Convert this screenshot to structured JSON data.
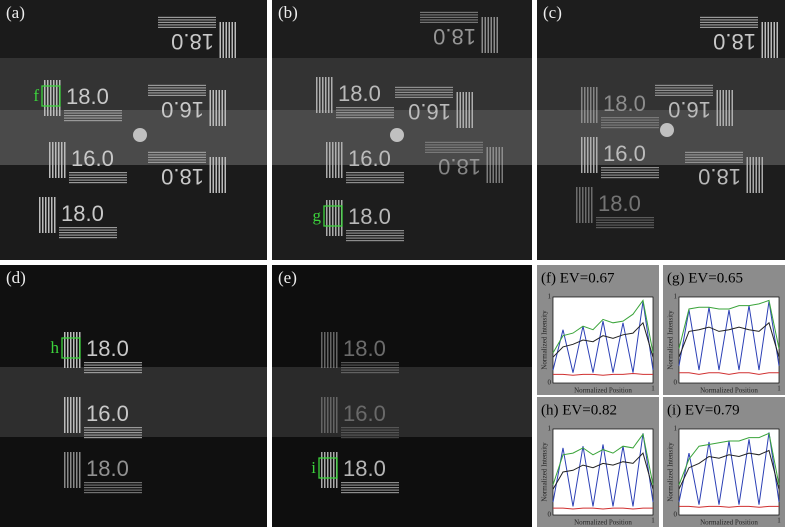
{
  "panels": [
    {
      "label": "(a)",
      "marker": "f",
      "targets": [
        "18.0",
        "18.0",
        "16.0",
        "16.0",
        "18.0",
        "18.0"
      ]
    },
    {
      "label": "(b)",
      "marker": "g",
      "targets": [
        "18.0",
        "18.0",
        "16.0",
        "16.0",
        "18.0",
        "18.0"
      ]
    },
    {
      "label": "(c)",
      "targets": [
        "18.0",
        "18.0",
        "16.0",
        "16.0",
        "18.0",
        "18.0"
      ]
    },
    {
      "label": "(d)",
      "marker": "h",
      "targets": [
        "18.0",
        "16.0",
        "18.0"
      ]
    },
    {
      "label": "(e)",
      "marker": "i",
      "targets": [
        "18.0",
        "16.0",
        "18.0"
      ]
    }
  ],
  "plots": [
    {
      "title": "(f) EV=0.67",
      "ylabel": "Normalized Intensity",
      "xlabel": "Normalized Position",
      "xlim": [
        0,
        1
      ],
      "ylim": [
        0,
        1
      ],
      "xticks": [
        0,
        1
      ],
      "yticks": [
        0,
        1
      ],
      "x": [
        0,
        0.1,
        0.2,
        0.3,
        0.4,
        0.5,
        0.6,
        0.7,
        0.8,
        0.9,
        1
      ],
      "series": [
        {
          "color": "#2b3fb5",
          "values": [
            0.15,
            0.62,
            0.12,
            0.66,
            0.12,
            0.72,
            0.12,
            0.7,
            0.12,
            0.95,
            0.15
          ]
        },
        {
          "color": "#3aa43a",
          "values": [
            0.35,
            0.55,
            0.58,
            0.66,
            0.62,
            0.74,
            0.7,
            0.72,
            0.8,
            0.96,
            0.35
          ]
        },
        {
          "color": "#222222",
          "values": [
            0.3,
            0.42,
            0.45,
            0.5,
            0.48,
            0.55,
            0.52,
            0.56,
            0.58,
            0.7,
            0.3
          ]
        },
        {
          "color": "#d03030",
          "values": [
            0.1,
            0.1,
            0.09,
            0.1,
            0.1,
            0.09,
            0.1,
            0.1,
            0.11,
            0.1,
            0.1
          ]
        }
      ]
    },
    {
      "title": "(g) EV=0.65",
      "ylabel": "Normalized Intensity",
      "xlabel": "Normalized Position",
      "xlim": [
        0,
        1
      ],
      "ylim": [
        0,
        1
      ],
      "xticks": [
        0,
        1
      ],
      "yticks": [
        0,
        1
      ],
      "x": [
        0,
        0.1,
        0.2,
        0.3,
        0.4,
        0.5,
        0.6,
        0.7,
        0.8,
        0.9,
        1
      ],
      "series": [
        {
          "color": "#2b3fb5",
          "values": [
            0.2,
            0.85,
            0.15,
            0.88,
            0.15,
            0.85,
            0.15,
            0.9,
            0.15,
            0.95,
            0.2
          ]
        },
        {
          "color": "#3aa43a",
          "values": [
            0.4,
            0.86,
            0.88,
            0.88,
            0.86,
            0.86,
            0.9,
            0.9,
            0.92,
            0.96,
            0.4
          ]
        },
        {
          "color": "#222222",
          "values": [
            0.3,
            0.6,
            0.62,
            0.65,
            0.6,
            0.62,
            0.65,
            0.62,
            0.6,
            0.7,
            0.3
          ]
        },
        {
          "color": "#d03030",
          "values": [
            0.12,
            0.12,
            0.1,
            0.12,
            0.12,
            0.1,
            0.12,
            0.12,
            0.1,
            0.12,
            0.12
          ]
        }
      ]
    },
    {
      "title": "(h) EV=0.82",
      "ylabel": "Normalized Intensity",
      "xlabel": "Normalized Position",
      "xlim": [
        0,
        1
      ],
      "ylim": [
        0,
        1
      ],
      "xticks": [
        0,
        1
      ],
      "yticks": [
        0,
        1
      ],
      "x": [
        0,
        0.1,
        0.2,
        0.3,
        0.4,
        0.5,
        0.6,
        0.7,
        0.8,
        0.9,
        1
      ],
      "series": [
        {
          "color": "#2b3fb5",
          "values": [
            0.15,
            0.78,
            0.1,
            0.8,
            0.1,
            0.82,
            0.1,
            0.8,
            0.1,
            0.95,
            0.15
          ]
        },
        {
          "color": "#3aa43a",
          "values": [
            0.35,
            0.7,
            0.72,
            0.78,
            0.7,
            0.76,
            0.72,
            0.8,
            0.78,
            0.94,
            0.35
          ]
        },
        {
          "color": "#222222",
          "values": [
            0.3,
            0.5,
            0.52,
            0.58,
            0.55,
            0.6,
            0.58,
            0.62,
            0.6,
            0.72,
            0.3
          ]
        },
        {
          "color": "#d03030",
          "values": [
            0.08,
            0.08,
            0.07,
            0.08,
            0.08,
            0.07,
            0.08,
            0.08,
            0.07,
            0.08,
            0.08
          ]
        }
      ]
    },
    {
      "title": "(i) EV=0.79",
      "ylabel": "Normalized Intensity",
      "xlabel": "Normalized Position",
      "xlim": [
        0,
        1
      ],
      "ylim": [
        0,
        1
      ],
      "xticks": [
        0,
        1
      ],
      "yticks": [
        0,
        1
      ],
      "x": [
        0,
        0.1,
        0.2,
        0.3,
        0.4,
        0.5,
        0.6,
        0.7,
        0.8,
        0.9,
        1
      ],
      "series": [
        {
          "color": "#2b3fb5",
          "values": [
            0.15,
            0.72,
            0.12,
            0.85,
            0.12,
            0.86,
            0.12,
            0.88,
            0.12,
            0.96,
            0.15
          ]
        },
        {
          "color": "#3aa43a",
          "values": [
            0.35,
            0.65,
            0.8,
            0.82,
            0.84,
            0.86,
            0.86,
            0.9,
            0.9,
            0.95,
            0.35
          ]
        },
        {
          "color": "#222222",
          "values": [
            0.3,
            0.55,
            0.6,
            0.68,
            0.66,
            0.7,
            0.68,
            0.72,
            0.7,
            0.75,
            0.3
          ]
        },
        {
          "color": "#d03030",
          "values": [
            0.1,
            0.1,
            0.09,
            0.1,
            0.1,
            0.09,
            0.1,
            0.1,
            0.09,
            0.1,
            0.1
          ]
        }
      ]
    }
  ]
}
